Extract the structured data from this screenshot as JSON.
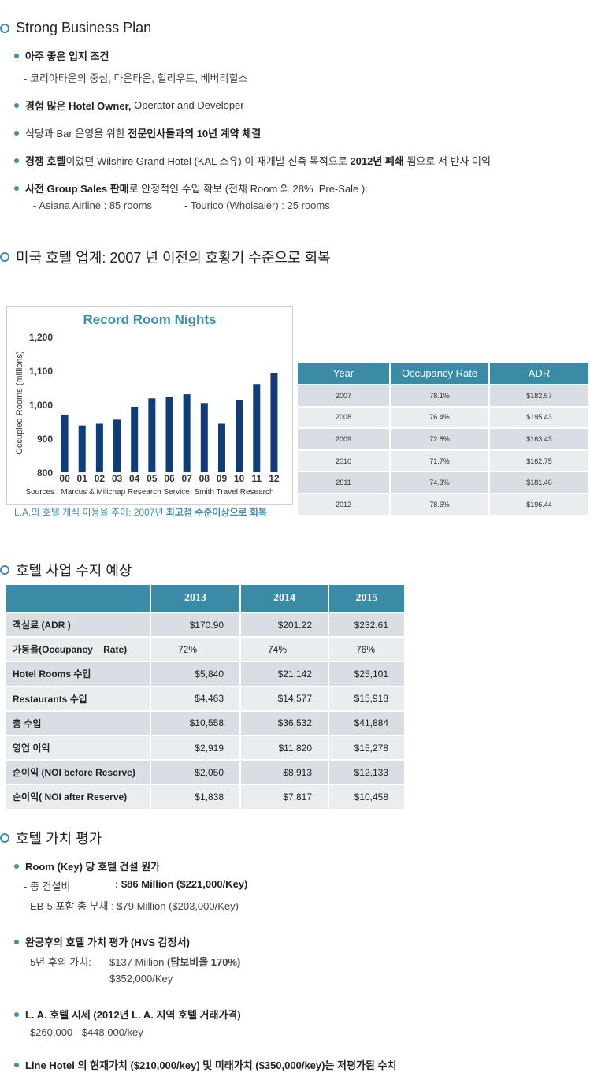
{
  "section1": {
    "title": "Strong Business Plan",
    "b1": "아주 좋은 입지 조건",
    "b1_sub": "- 코리아타운의 중심, 다운타운, 헐리우드, 베버리힐스",
    "b2_bold": "경험 많은 Hotel Owner,",
    "b2_rest": " Operator and Developer",
    "b3_pre": "식당과 Bar 운영을 위한 ",
    "b3_bold": "전문인사들과의 10년 계약 체결",
    "b4_bold1": "경쟁 호텔",
    "b4_mid": "이었던 Wilshire Grand Hotel (KAL 소유) 이 재개발 신축 목적으로 ",
    "b4_bold2": "2012년 폐쇄",
    "b4_end": " 됨으로 서 반사 이익",
    "b5_bold": "사전 Group Sales 판매",
    "b5_rest": "로 안정적인 수입 확보 (전체 Room 의 28%  Pre-Sale ):",
    "b5_sub1": "- Asiana Airline : 85 rooms",
    "b5_sub2": "- Tourico (Wholsaler) : 25 rooms"
  },
  "section2": {
    "title": "미국 호텔 업계: 2007 년 이전의 호황기 수준으로 회복",
    "caption_pre": "L.A.의 호텔 개식 이용율 추이: 2007년 ",
    "caption_bold": "최고점 수준이상으로 회복",
    "table": {
      "headers": [
        "Year",
        "Occupancy Rate",
        "ADR"
      ],
      "rows": [
        [
          "2007",
          "78.1%",
          "$182.57"
        ],
        [
          "2008",
          "76.4%",
          "$195.43"
        ],
        [
          "2009",
          "72.8%",
          "$163.43"
        ],
        [
          "2010",
          "71.7%",
          "$162.75"
        ],
        [
          "2011",
          "74.3%",
          "$181.46"
        ],
        [
          "2012",
          "78.6%",
          "$196.44"
        ]
      ]
    }
  },
  "chart_data": {
    "type": "bar",
    "title": "Record Room Nights",
    "ylabel": "Occupied Rooms (millions)",
    "xlabel": "",
    "categories": [
      "00",
      "01",
      "02",
      "03",
      "04",
      "05",
      "06",
      "07",
      "08",
      "09",
      "10",
      "11",
      "12"
    ],
    "values": [
      970,
      938,
      943,
      955,
      993,
      1018,
      1023,
      1030,
      1004,
      943,
      1012,
      1060,
      1093
    ],
    "ylim": [
      800,
      1200
    ],
    "yticks": [
      "800",
      "900",
      "1,000",
      "1,100",
      "1,200"
    ],
    "source": "Sources : Marcus & Milichap Research Service, Smith Travel Research",
    "colors": {
      "bar": "#0f3d7a",
      "title": "#3d8eb0"
    }
  },
  "section3": {
    "title": "호텔 사업 수지 예상",
    "years": [
      "2013",
      "2014",
      "2015"
    ],
    "rows": [
      {
        "label": "객실료  (ADR )",
        "values": [
          "$170.90",
          "$201.22",
          "$232.61"
        ]
      },
      {
        "label": "가동율(Occupancy    Rate)",
        "values": [
          "72%",
          "74%",
          "76%"
        ]
      },
      {
        "label": "Hotel Rooms  수입",
        "values": [
          "$5,840",
          "$21,142",
          "$25,101"
        ]
      },
      {
        "label": "Restaurants  수입",
        "values": [
          "$4,463",
          "$14,577",
          "$15,918"
        ]
      },
      {
        "label": "총  수입",
        "values": [
          "$10,558",
          "$36,532",
          "$41,884"
        ]
      },
      {
        "label": "영업  이익",
        "values": [
          "$2,919",
          "$11,820",
          "$15,278"
        ]
      },
      {
        "label": "순이익  (NOI before Reserve)",
        "values": [
          "$2,050",
          "$8,913",
          "$12,133"
        ]
      },
      {
        "label": "순이익( NOI after Reserve)",
        "values": [
          "$1,838",
          "$7,817",
          "$10,458"
        ]
      }
    ]
  },
  "section4": {
    "title": "호텔 가치 평가",
    "b1": "Room (Key) 당 호텔 건설 원가",
    "b1_sub1_label": "- 총 건설비",
    "b1_sub1_value": ": $86 Million ($221,000/Key)",
    "b1_sub2": "- EB-5 포함 총 부채 : $79 Million ($203,000/Key)",
    "b2": "완공후의 호텔 가치 평가 (HVS 감정서)",
    "b2_sub1_label": "- 5년 후의 가치:",
    "b2_sub1_value": "$137 Million ",
    "b2_sub1_bold": "(담보비율 170%)",
    "b2_sub2": "$352,000/Key",
    "b3": "L. A. 호텔 시세 (2012년 L. A. 지역 호텔 거래가격)",
    "b3_sub": "- $260,000 - $448,000/key",
    "b4": "Line Hotel 의 현재가치 ($210,000/key) 및 미래가치 ($350,000/key)는 저평가된 수치"
  }
}
